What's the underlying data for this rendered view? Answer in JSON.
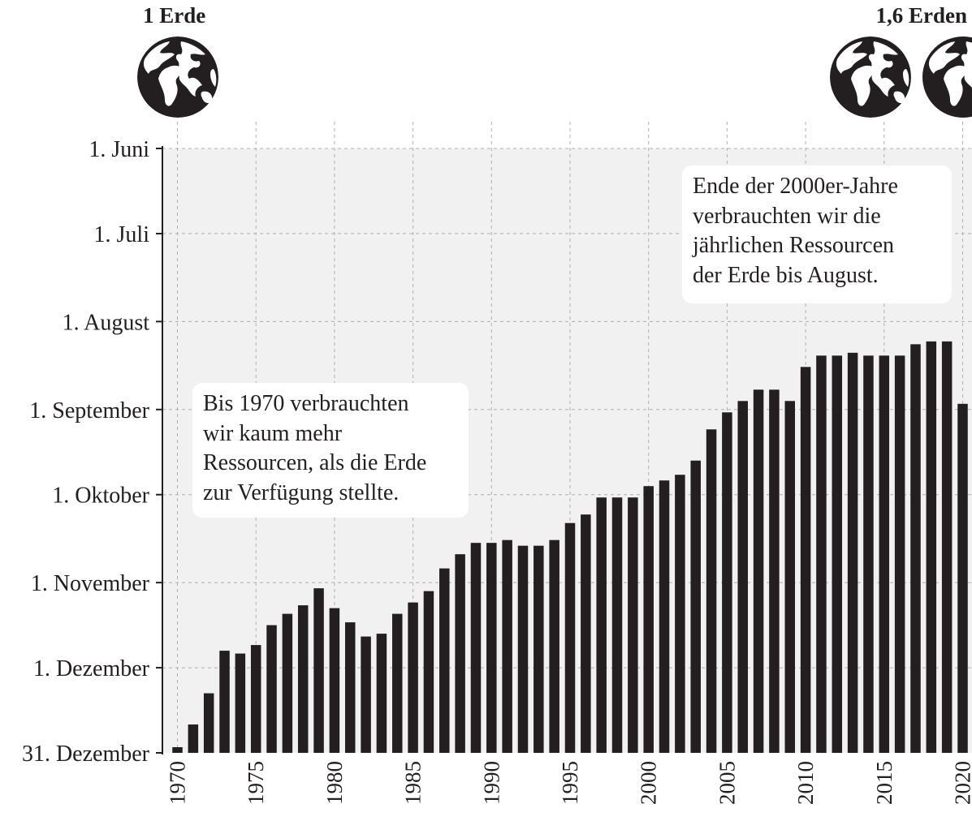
{
  "header": {
    "left_label": "1 Erde",
    "right_label": "1,6 Erden",
    "left_icon": "earth-globe-icon",
    "right_icon": "earth-globe-icon"
  },
  "annotations": [
    {
      "lines": [
        "Bis 1970 verbrauchten",
        "wir kaum mehr",
        "Ressourcen, als die Erde",
        "zur Verfügung stellte."
      ]
    },
    {
      "lines": [
        "Ende der 2000er-Jahre",
        "verbrauchten wir die",
        "jährlichen Ressourcen",
        "der Erde bis August."
      ]
    }
  ],
  "colors": {
    "bar": "#231f20",
    "plot_background": "#f1f1f1",
    "grid": "#b0b0b0"
  },
  "chart_data": {
    "type": "bar",
    "title": "",
    "xlabel": "",
    "ylabel": "",
    "y_axis_reversed": true,
    "ylim_days": [
      0,
      213
    ],
    "y_ticks": [
      {
        "label": "1. Juni",
        "day": 0
      },
      {
        "label": "1. Juli",
        "day": 30
      },
      {
        "label": "1. August",
        "day": 61
      },
      {
        "label": "1. September",
        "day": 92
      },
      {
        "label": "1. Oktober",
        "day": 122
      },
      {
        "label": "1. November",
        "day": 153
      },
      {
        "label": "1. Dezember",
        "day": 183
      },
      {
        "label": "31. Dezember",
        "day": 213
      }
    ],
    "x_ticks": [
      "1970",
      "1975",
      "1980",
      "1985",
      "1990",
      "1995",
      "2000",
      "2005",
      "2010",
      "2015",
      "2020"
    ],
    "x": [
      1970,
      1971,
      1972,
      1973,
      1974,
      1975,
      1976,
      1977,
      1978,
      1979,
      1980,
      1981,
      1982,
      1983,
      1984,
      1985,
      1986,
      1987,
      1988,
      1989,
      1990,
      1991,
      1992,
      1993,
      1994,
      1995,
      1996,
      1997,
      1998,
      1999,
      2000,
      2001,
      2002,
      2003,
      2004,
      2005,
      2006,
      2007,
      2008,
      2009,
      2010,
      2011,
      2012,
      2013,
      2014,
      2015,
      2016,
      2017,
      2018,
      2019,
      2020
    ],
    "dates": [
      "29. Dezember",
      "21. Dezember",
      "10. Dezember",
      "25. November",
      "26. November",
      "23. November",
      "16. November",
      "12. November",
      "9. November",
      "3. November",
      "10. November",
      "15. November",
      "20. November",
      "19. November",
      "12. November",
      "8. November",
      "4. November",
      "27. Oktober",
      "22. Oktober",
      "18. Oktober",
      "18. Oktober",
      "17. Oktober",
      "19. Oktober",
      "19. Oktober",
      "17. Oktober",
      "11. Oktober",
      "8. Oktober",
      "2. Oktober",
      "2. Oktober",
      "2. Oktober",
      "28. September",
      "26. September",
      "24. September",
      "19. September",
      "8. September",
      "2. September",
      "29. August",
      "25. August",
      "25. August",
      "29. August",
      "17. August",
      "13. August",
      "13. August",
      "12. August",
      "13. August",
      "13. August",
      "13. August",
      "9. August",
      "8. August",
      "8. August",
      "30. August"
    ]
  }
}
